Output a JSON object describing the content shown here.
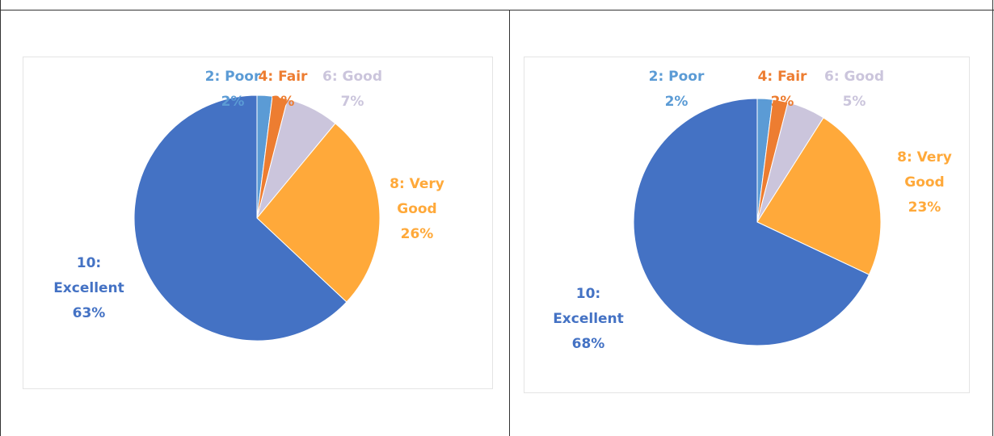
{
  "chart_data": [
    {
      "type": "pie",
      "categories": [
        "2: Poor",
        "4: Fair",
        "6: Good",
        "8: Very Good",
        "10: Excellent"
      ],
      "values": [
        2,
        2,
        7,
        26,
        63
      ],
      "value_labels": [
        "2%",
        "2%",
        "7%",
        "26%",
        "63%"
      ],
      "colors": [
        "#5b9bd5",
        "#ed7d31",
        "#cbc5dc",
        "#ffa93a",
        "#4472c4"
      ]
    },
    {
      "type": "pie",
      "categories": [
        "2: Poor",
        "4: Fair",
        "6: Good",
        "8: Very Good",
        "10: Excellent"
      ],
      "values": [
        2,
        2,
        5,
        23,
        68
      ],
      "value_labels": [
        "2%",
        "2%",
        "5%",
        "23%",
        "68%"
      ],
      "colors": [
        "#5b9bd5",
        "#ed7d31",
        "#cbc5dc",
        "#ffa93a",
        "#4472c4"
      ]
    }
  ]
}
